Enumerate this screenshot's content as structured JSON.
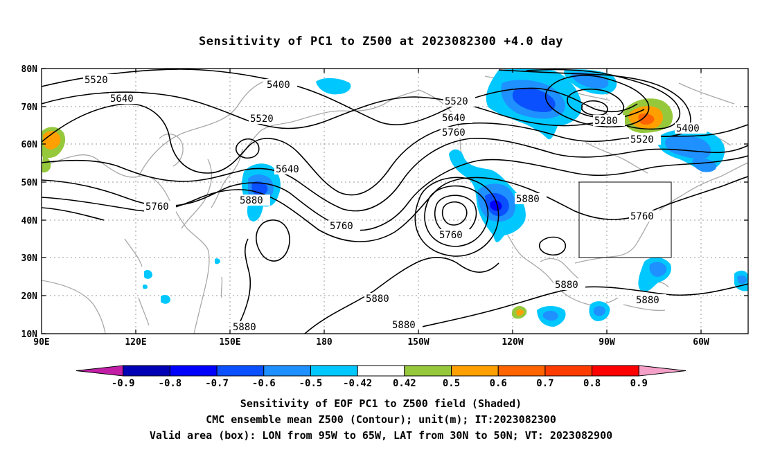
{
  "title": "Sensitivity of PC1 to Z500 at 2023082300 +4.0 day",
  "lat_ticks": [
    "80N",
    "70N",
    "60N",
    "50N",
    "40N",
    "30N",
    "20N",
    "10N"
  ],
  "lon_ticks": [
    "90E",
    "120E",
    "150E",
    "180",
    "150W",
    "120W",
    "90W",
    "60W"
  ],
  "contour_labels": {
    "c5520_a": "5520",
    "c5640_a": "5640",
    "c5400_a": "5400",
    "c5520_b": "5520",
    "c5520_c": "5520",
    "c5640_b": "5640",
    "c5760_a": "5760",
    "c5280": "5280",
    "c5400_b": "5400",
    "c5520_d": "5520",
    "c5640_c": "5640",
    "c5760_b": "5760",
    "c5880_a": "5880",
    "c5760_c": "5760",
    "c5880_b": "5880",
    "c5760_d": "5760",
    "c5760_e": "5760",
    "c5880_c": "5880",
    "c5880_d": "5880",
    "c5880_e": "5880",
    "c5880_f": "5880",
    "c5880_g": "5880"
  },
  "colorbar": {
    "labels": [
      "-0.9",
      "-0.8",
      "-0.7",
      "-0.6",
      "-0.5",
      "-0.42",
      "0.42",
      "0.5",
      "0.6",
      "0.7",
      "0.8",
      "0.9"
    ],
    "colors": [
      "#c21fa6",
      "#0000b4",
      "#0000ff",
      "#0a50ff",
      "#1e90ff",
      "#00c8ff",
      "#ffffff",
      "#96c83c",
      "#ffa000",
      "#ff6400",
      "#ff3c00",
      "#ff0000",
      "#f5a0c8"
    ]
  },
  "footer": {
    "line1": "Sensitivity of EOF PC1 to Z500 field (Shaded)",
    "line2": "CMC ensemble mean Z500 (Contour); unit(m); IT:2023082300",
    "line3": "Valid area (box): LON from 95W to 65W, LAT from 30N to 50N; VT: 2023082900"
  },
  "valid_area": {
    "lon_west": -95,
    "lon_east": -65,
    "lat_south": 30,
    "lat_north": 50
  }
}
